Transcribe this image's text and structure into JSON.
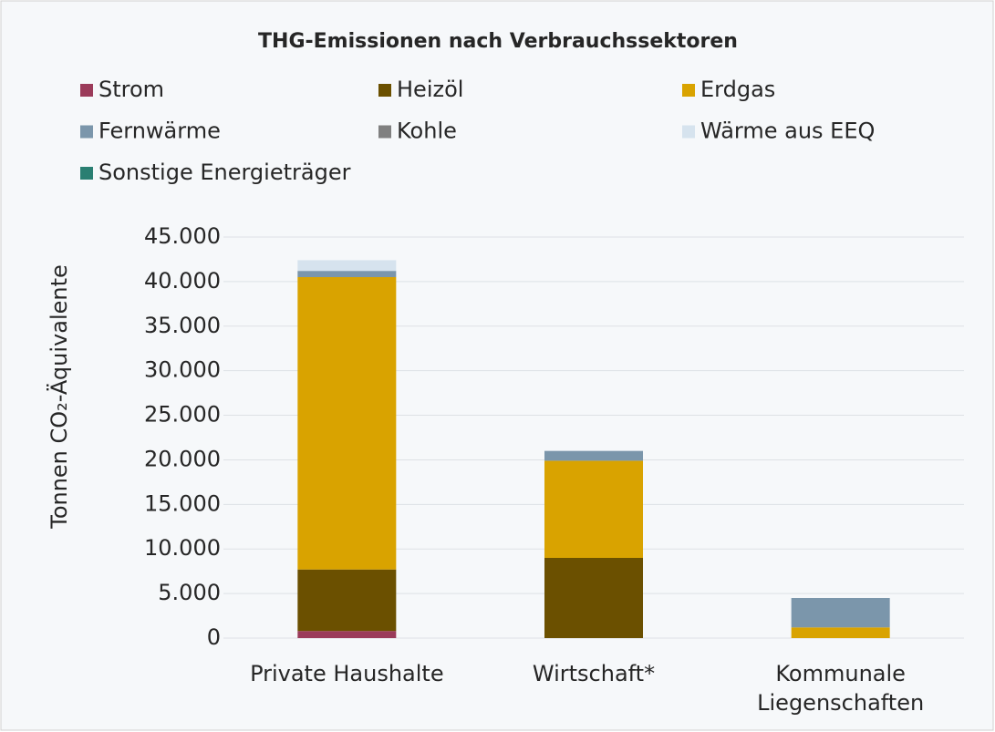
{
  "chart_data": {
    "type": "stacked_bar",
    "title": "THG-Emissionen nach Verbrauchssektoren",
    "y_label": "Tonnen CO₂-Äquivalente",
    "categories": [
      "Private Haushalte",
      "Wirtschaft*",
      "Kommunale Liegenschaften"
    ],
    "series": [
      {
        "name": "Strom",
        "color": "#9b3b5a",
        "values": [
          800,
          0,
          0
        ]
      },
      {
        "name": "Heizöl",
        "color": "#6b5000",
        "values": [
          6900,
          9000,
          0
        ]
      },
      {
        "name": "Erdgas",
        "color": "#d9a300",
        "values": [
          32800,
          10900,
          1200
        ]
      },
      {
        "name": "Fernwärme",
        "color": "#7b96ab",
        "values": [
          700,
          1100,
          3300
        ]
      },
      {
        "name": "Kohle",
        "color": "#808080",
        "values": [
          0,
          0,
          0
        ]
      },
      {
        "name": "Wärme aus EEQ",
        "color": "#d6e3ee",
        "values": [
          1200,
          0,
          0
        ]
      },
      {
        "name": "Sonstige Energieträger",
        "color": "#2a7f72",
        "values": [
          0,
          0,
          0
        ]
      }
    ],
    "ylim": [
      0,
      45000
    ],
    "yticks": [
      {
        "value": 0,
        "label": "0"
      },
      {
        "value": 5000,
        "label": "5.000"
      },
      {
        "value": 10000,
        "label": "10.000"
      },
      {
        "value": 15000,
        "label": "15.000"
      },
      {
        "value": 20000,
        "label": "20.000"
      },
      {
        "value": 25000,
        "label": "25.000"
      },
      {
        "value": 30000,
        "label": "30.000"
      },
      {
        "value": 35000,
        "label": "35.000"
      },
      {
        "value": 40000,
        "label": "40.000"
      },
      {
        "value": 45000,
        "label": "45.000"
      }
    ],
    "grid": true
  }
}
